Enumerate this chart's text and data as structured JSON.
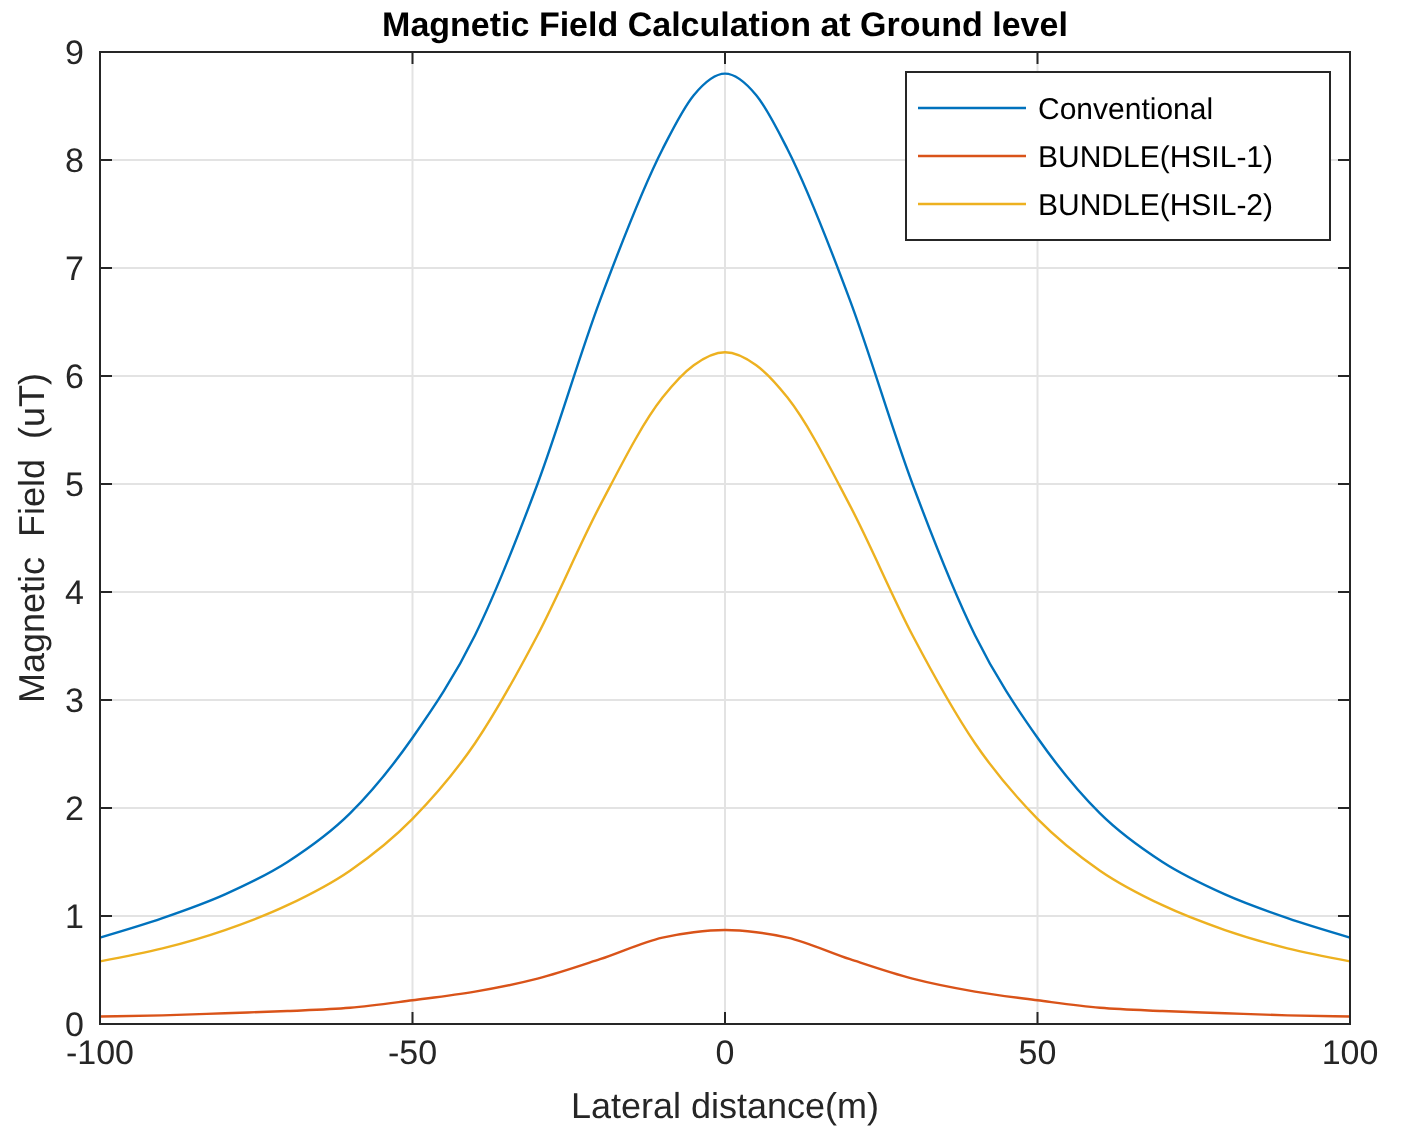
{
  "chart_data": {
    "type": "line",
    "title": "Magnetic Field Calculation at Ground level",
    "xlabel": "Lateral distance(m)",
    "ylabel": "Magnetic  Field  (uT)",
    "x": [
      -100,
      -90,
      -80,
      -70,
      -60,
      -50,
      -40,
      -30,
      -20,
      -10,
      -5,
      0,
      5,
      10,
      20,
      30,
      40,
      50,
      60,
      70,
      80,
      90,
      100
    ],
    "series": [
      {
        "name": "Conventional",
        "color": "#0072bd",
        "values": [
          0.8,
          0.98,
          1.2,
          1.5,
          1.95,
          2.65,
          3.6,
          5.0,
          6.7,
          8.1,
          8.6,
          8.8,
          8.6,
          8.1,
          6.7,
          5.0,
          3.6,
          2.65,
          1.95,
          1.5,
          1.2,
          0.98,
          0.8
        ]
      },
      {
        "name": "BUNDLE(HSIL-1)",
        "color": "#d95319",
        "values": [
          0.07,
          0.08,
          0.1,
          0.12,
          0.15,
          0.22,
          0.3,
          0.42,
          0.6,
          0.8,
          0.85,
          0.87,
          0.85,
          0.8,
          0.6,
          0.42,
          0.3,
          0.22,
          0.15,
          0.12,
          0.1,
          0.08,
          0.07
        ]
      },
      {
        "name": "BUNDLE(HSIL-2)",
        "color": "#edb120",
        "values": [
          0.58,
          0.7,
          0.87,
          1.1,
          1.42,
          1.9,
          2.6,
          3.6,
          4.8,
          5.8,
          6.1,
          6.22,
          6.1,
          5.8,
          4.8,
          3.6,
          2.6,
          1.9,
          1.42,
          1.1,
          0.87,
          0.7,
          0.58
        ]
      }
    ],
    "xlim": [
      -100,
      100
    ],
    "xticks": [
      -100,
      -50,
      0,
      50,
      100
    ],
    "ylim": [
      0,
      9
    ],
    "yticks": [
      0,
      1,
      2,
      3,
      4,
      5,
      6,
      7,
      8,
      9
    ],
    "grid": true,
    "legend": "top right"
  }
}
